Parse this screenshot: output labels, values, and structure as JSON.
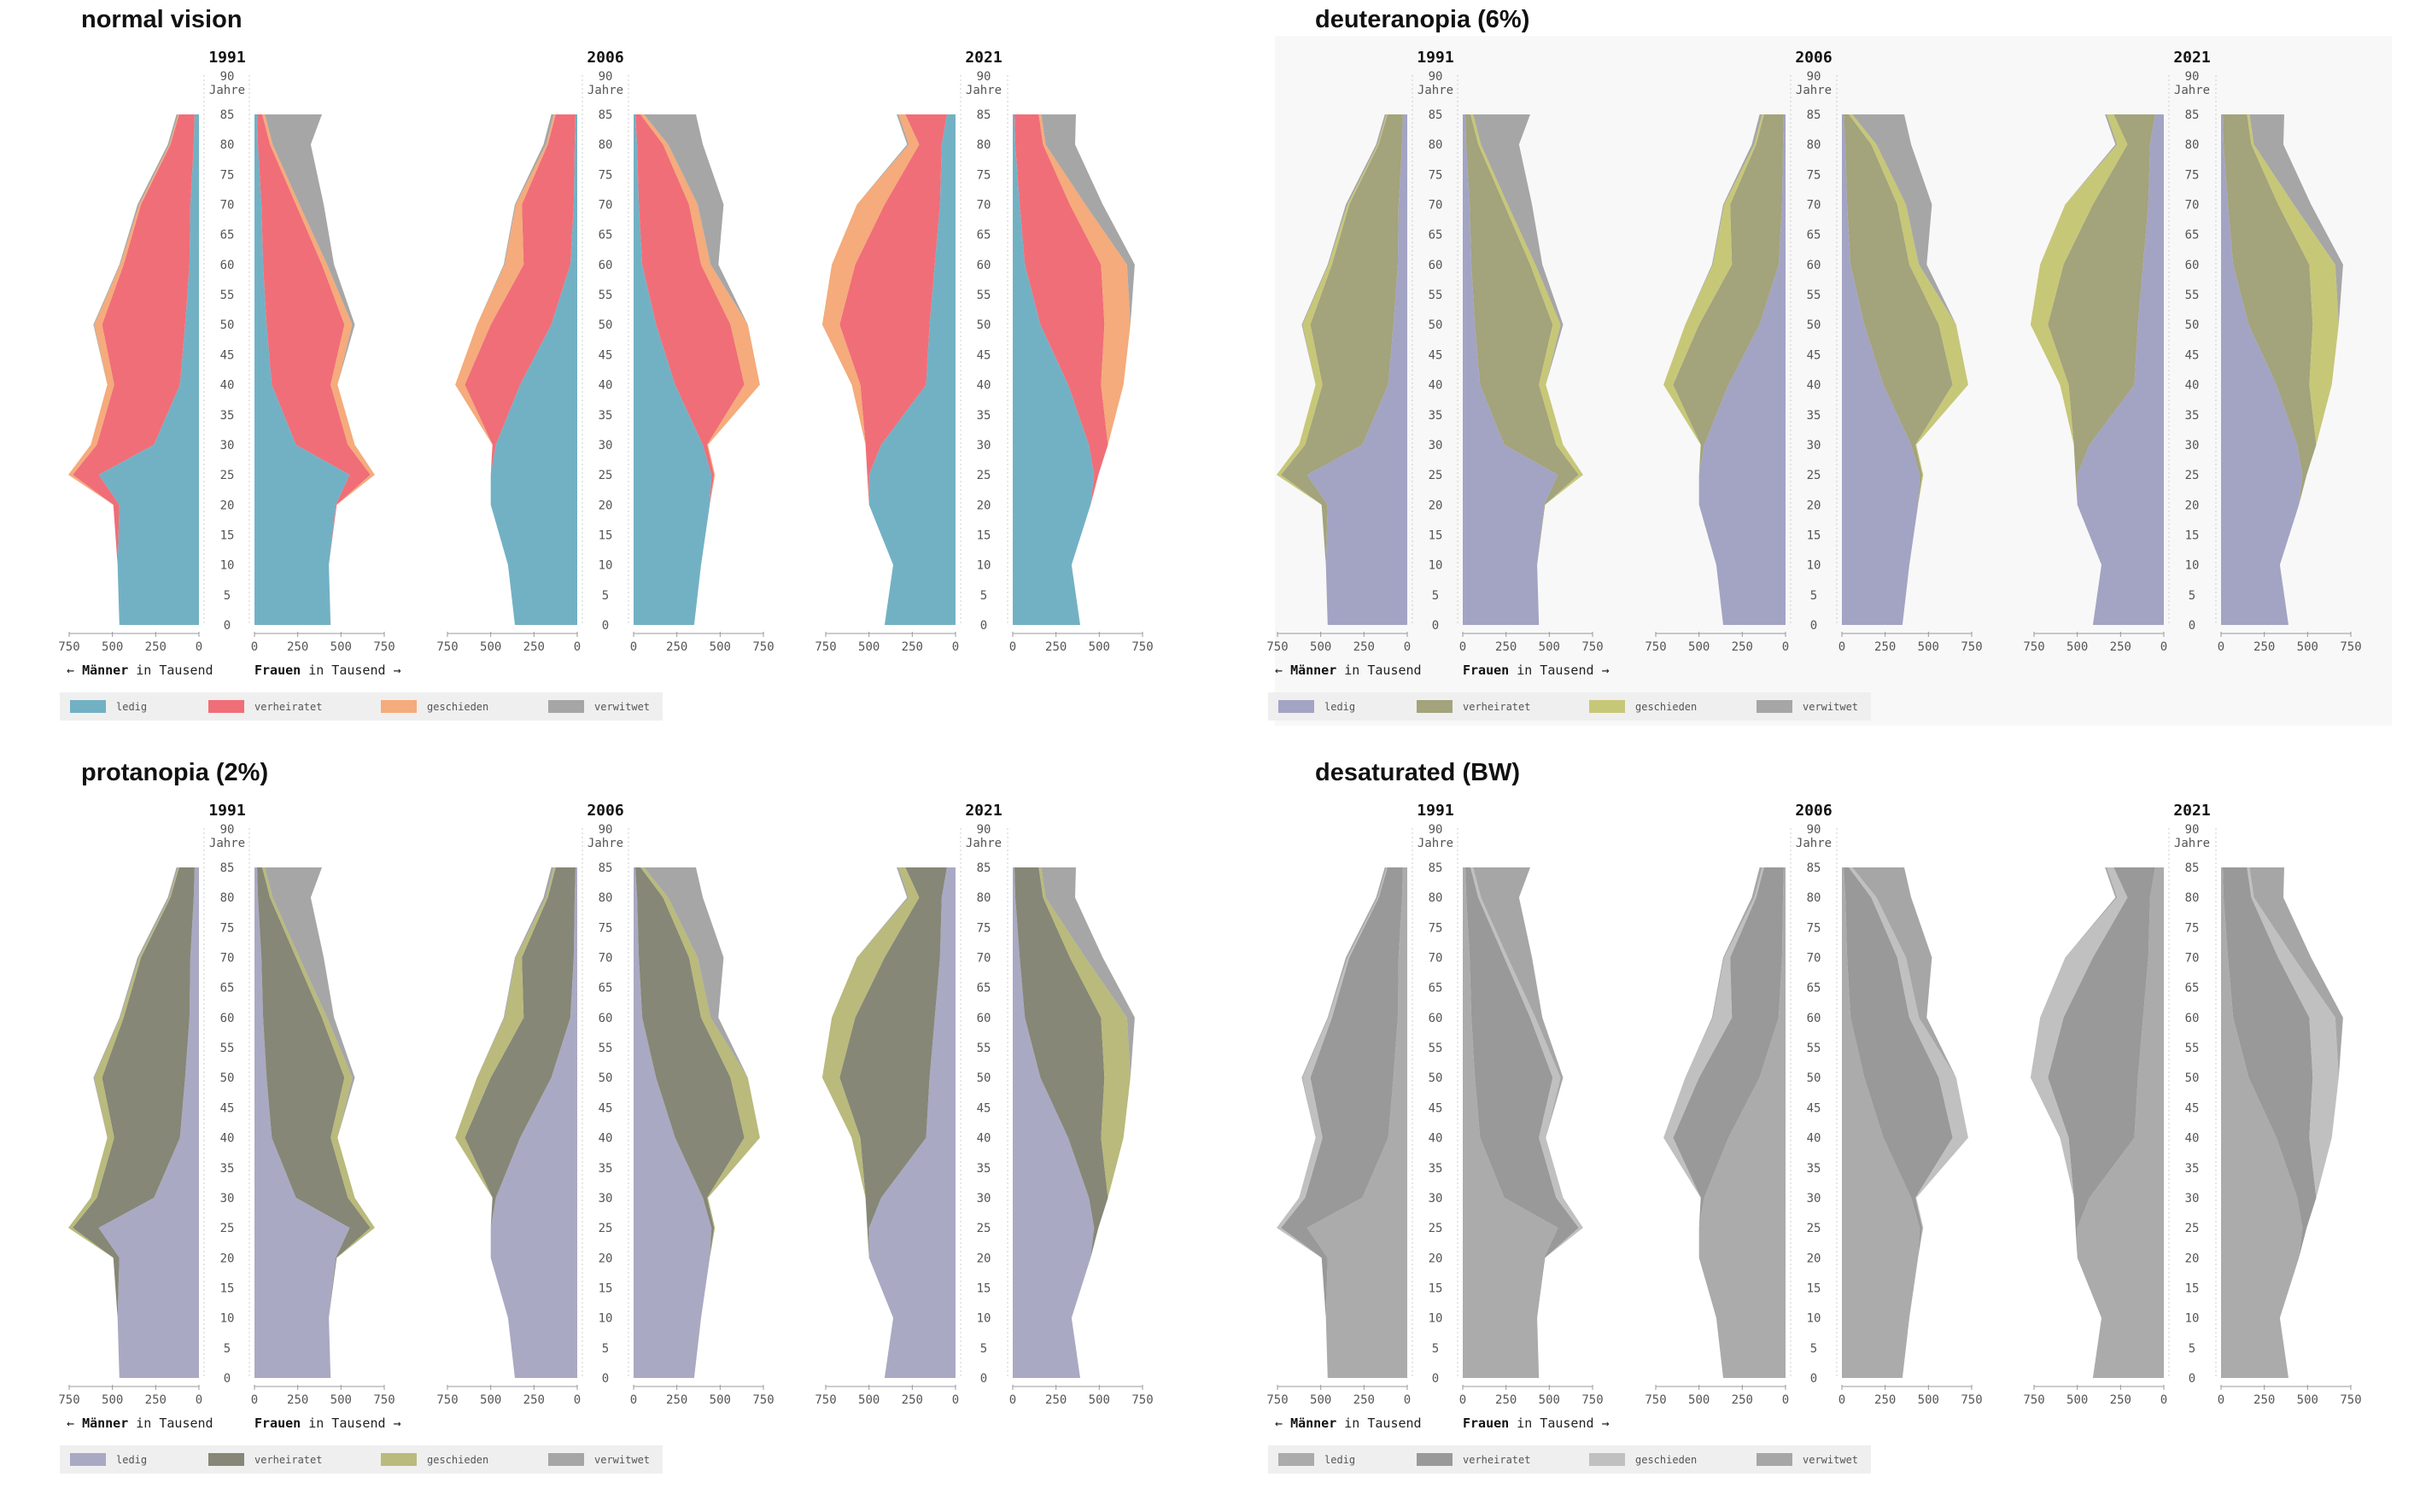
{
  "x_tick_labels": [
    "750",
    "500",
    "250",
    "0"
  ],
  "x_tick_labels_right": [
    "0",
    "250",
    "500",
    "750"
  ],
  "age_unit": "Jahre",
  "men_label": "Männer",
  "women_label": "Frauen",
  "in_word": "in",
  "unit_label": "Tausend",
  "arrow_left": "←",
  "arrow_right": "→",
  "palettes": {
    "normal vision": {
      "ledig": "#72b1c4",
      "verheiratet": "#f06e78",
      "geschieden": "#f5ab7b",
      "verwitwet": "#a6a6a6"
    },
    "deuteranopia (6%)": {
      "ledig": "#a3a3c4",
      "verheiratet": "#a3a37c",
      "geschieden": "#c7c778",
      "verwitwet": "#a6a6a6"
    },
    "protanopia (2%)": {
      "ledig": "#a9a9c3",
      "verheiratet": "#868776",
      "geschieden": "#b9ba7c",
      "verwitwet": "#a6a6a6"
    },
    "desaturated (BW)": {
      "ledig": "#ababab",
      "verheiratet": "#999999",
      "geschieden": "#c0c0c0",
      "verwitwet": "#a6a6a6"
    }
  },
  "chart_data": {
    "type": "area",
    "title": "",
    "panels": [
      "normal vision",
      "deuteranopia (6%)",
      "protanopia (2%)",
      "desaturated (BW)"
    ],
    "years": [
      "1991",
      "2006",
      "2021"
    ],
    "categories": [
      "ledig",
      "verheiratet",
      "geschieden",
      "verwitwet"
    ],
    "age_axis": {
      "ticks": [
        0,
        5,
        10,
        15,
        20,
        25,
        30,
        35,
        40,
        45,
        50,
        55,
        60,
        65,
        70,
        75,
        80,
        85,
        90
      ],
      "range": [
        0,
        85
      ]
    },
    "x_axis": {
      "ticks": [
        750,
        500,
        250,
        0
      ],
      "range": [
        0,
        750
      ],
      "unit": "Tausend"
    },
    "age_nodes": [
      0,
      10,
      20,
      25,
      30,
      40,
      50,
      60,
      70,
      80,
      85
    ],
    "series": [
      {
        "year": "1991",
        "sex": "Männer",
        "ledig": [
          460,
          470,
          460,
          580,
          260,
          110,
          80,
          55,
          50,
          30,
          25
        ],
        "verheiratet": [
          0,
          0,
          35,
          150,
          330,
          380,
          480,
          380,
          285,
          135,
          90
        ],
        "geschieden": [
          0,
          0,
          0,
          25,
          35,
          40,
          45,
          20,
          10,
          5,
          5
        ],
        "verwitwet": [
          0,
          0,
          0,
          0,
          0,
          0,
          5,
          5,
          10,
          10,
          10
        ]
      },
      {
        "year": "1991",
        "sex": "Frauen",
        "ledig": [
          440,
          430,
          470,
          550,
          240,
          100,
          70,
          50,
          40,
          20,
          15
        ],
        "verheiratet": [
          0,
          0,
          5,
          120,
          300,
          340,
          450,
          340,
          200,
          70,
          30
        ],
        "geschieden": [
          0,
          0,
          0,
          25,
          40,
          40,
          45,
          30,
          20,
          15,
          15
        ],
        "verwitwet": [
          0,
          0,
          0,
          0,
          0,
          0,
          15,
          40,
          140,
          220,
          330
        ]
      },
      {
        "year": "2006",
        "sex": "Männer",
        "ledig": [
          360,
          400,
          500,
          500,
          470,
          330,
          150,
          40,
          20,
          15,
          10
        ],
        "verheiratet": [
          0,
          0,
          0,
          0,
          20,
          320,
          350,
          270,
          300,
          155,
          115
        ],
        "geschieden": [
          0,
          0,
          0,
          0,
          0,
          55,
          80,
          110,
          35,
          10,
          10
        ],
        "verwitwet": [
          0,
          0,
          0,
          0,
          0,
          0,
          0,
          5,
          5,
          15,
          15
        ]
      },
      {
        "year": "2006",
        "sex": "Frauen",
        "ledig": [
          350,
          390,
          440,
          450,
          400,
          240,
          130,
          50,
          30,
          20,
          10
        ],
        "verheiratet": [
          0,
          0,
          0,
          15,
          25,
          400,
          430,
          340,
          290,
          150,
          30
        ],
        "geschieden": [
          0,
          0,
          0,
          5,
          5,
          90,
          100,
          55,
          50,
          30,
          20
        ],
        "verwitwet": [
          0,
          0,
          0,
          0,
          0,
          0,
          0,
          45,
          150,
          200,
          300
        ]
      },
      {
        "year": "2021",
        "sex": "Männer",
        "ledig": [
          410,
          360,
          500,
          500,
          430,
          170,
          150,
          120,
          90,
          80,
          50
        ],
        "verheiratet": [
          0,
          0,
          0,
          10,
          90,
          380,
          520,
          460,
          320,
          130,
          240
        ],
        "geschieden": [
          0,
          0,
          0,
          0,
          0,
          50,
          100,
          135,
          160,
          60,
          40
        ],
        "verwitwet": [
          0,
          0,
          0,
          0,
          0,
          0,
          0,
          0,
          0,
          10,
          10
        ]
      },
      {
        "year": "2021",
        "sex": "Frauen",
        "ledig": [
          390,
          340,
          450,
          470,
          440,
          320,
          160,
          70,
          40,
          15,
          10
        ],
        "verheiratet": [
          0,
          0,
          0,
          25,
          110,
          190,
          370,
          440,
          290,
          160,
          140
        ],
        "geschieden": [
          0,
          0,
          0,
          0,
          0,
          130,
          150,
          150,
          90,
          15,
          15
        ],
        "verwitwet": [
          0,
          0,
          0,
          0,
          0,
          0,
          0,
          45,
          100,
          170,
          200
        ]
      }
    ]
  }
}
